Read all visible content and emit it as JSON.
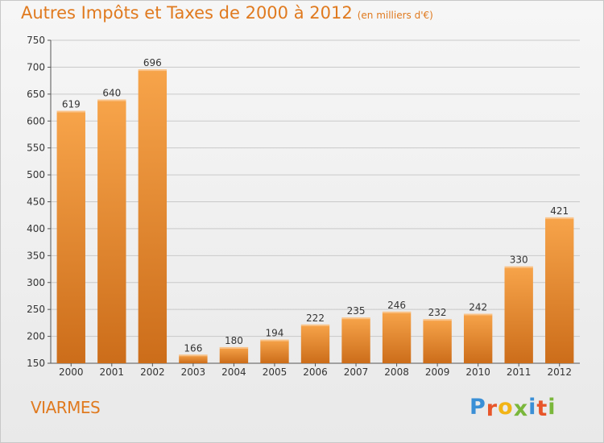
{
  "header": {
    "title": "Autres Impôts et Taxes de 2000 à 2012",
    "unit": "(en milliers d'€)"
  },
  "footer": {
    "commune": "VIARMES",
    "logo_text": "Proxiti"
  },
  "colors": {
    "bar_light": "#f7a44a",
    "bar_dark": "#cc6d1a",
    "accent": "#e07a1f",
    "grid": "#c9c9c9"
  },
  "chart_data": {
    "type": "bar",
    "title": "Autres Impôts et Taxes de 2000 à 2012",
    "subtitle": "(en milliers d'€)",
    "categories": [
      "2000",
      "2001",
      "2002",
      "2003",
      "2004",
      "2005",
      "2006",
      "2007",
      "2008",
      "2009",
      "2010",
      "2011",
      "2012"
    ],
    "values": [
      619,
      640,
      696,
      166,
      180,
      194,
      222,
      235,
      246,
      232,
      242,
      330,
      421
    ],
    "ylim": [
      150,
      750
    ],
    "yticks": [
      150,
      200,
      250,
      300,
      350,
      400,
      450,
      500,
      550,
      600,
      650,
      700,
      750
    ],
    "grid": true,
    "legend": "none"
  }
}
